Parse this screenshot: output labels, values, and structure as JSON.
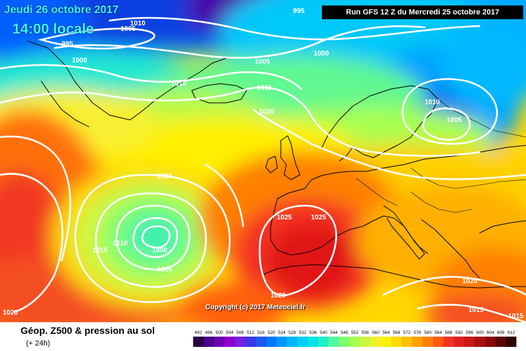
{
  "header": {
    "date": "Jeudi 26 octobre 2017",
    "time": "14:00 locale",
    "run": "Run GFS 12 Z du Mercredi 25 octobre 2017"
  },
  "map": {
    "copyright": "Copyright (c) 2017 Meteociel.fr",
    "isobar_labels": [
      {
        "id": "isobar-label-995-a",
        "text": "995"
      },
      {
        "id": "isobar-label-995-b",
        "text": "995"
      },
      {
        "id": "isobar-label-1010-a",
        "text": "1010"
      },
      {
        "id": "isobar-label-1005-a",
        "text": "1005"
      },
      {
        "id": "isobar-label-1000-a",
        "text": "1000"
      },
      {
        "id": "isobar-label-1005-b",
        "text": "1005"
      },
      {
        "id": "isobar-label-1000-b",
        "text": "1000"
      },
      {
        "id": "isobar-label-1010-b",
        "text": "1010"
      },
      {
        "id": "isobar-label-1015-a",
        "text": "1015"
      },
      {
        "id": "isobar-label-1020-a",
        "text": "1020"
      },
      {
        "id": "isobar-label-1010-c",
        "text": "1010"
      },
      {
        "id": "isobar-label-1005-c",
        "text": "1005"
      },
      {
        "id": "isobar-label-1020-b",
        "text": "1020"
      },
      {
        "id": "isobar-label-1025-a",
        "text": "1025"
      },
      {
        "id": "isobar-label-1025-b",
        "text": "1025"
      },
      {
        "id": "isobar-label-1015-b",
        "text": "1015"
      },
      {
        "id": "isobar-label-1010-d",
        "text": "1010"
      },
      {
        "id": "isobar-label-1000-c",
        "text": "1000"
      },
      {
        "id": "isobar-label-1005-d",
        "text": "1005"
      },
      {
        "id": "isobar-label-1020-c",
        "text": "1020"
      },
      {
        "id": "isobar-label-1020-d",
        "text": "1020"
      },
      {
        "id": "isobar-label-1020-e",
        "text": "1020"
      },
      {
        "id": "isobar-label-1015-c",
        "text": "1015"
      },
      {
        "id": "isobar-label-1015-d",
        "text": "1015"
      }
    ]
  },
  "footer": {
    "title": "Géop. Z500 & pression au sol",
    "subtitle": "(+ 24h)"
  },
  "legend": {
    "values": [
      "492",
      "496",
      "500",
      "504",
      "508",
      "512",
      "516",
      "520",
      "524",
      "528",
      "532",
      "536",
      "540",
      "544",
      "548",
      "552",
      "556",
      "560",
      "564",
      "568",
      "572",
      "576",
      "580",
      "584",
      "588",
      "592",
      "596",
      "600",
      "604",
      "608",
      "612"
    ],
    "colors": [
      "#2a0044",
      "#4a0088",
      "#6a00b0",
      "#9000d0",
      "#7a1ee0",
      "#3838e6",
      "#2058f0",
      "#0078ff",
      "#0098ff",
      "#00b8ff",
      "#00d0f8",
      "#00e4e8",
      "#20f0c8",
      "#50f8a0",
      "#80ff70",
      "#a8ff50",
      "#cff540",
      "#f0f030",
      "#fff000",
      "#ffd800",
      "#ffc000",
      "#ffa000",
      "#ff8000",
      "#ff5a10",
      "#f43020",
      "#e02020",
      "#c81818",
      "#a81010",
      "#880808",
      "#5a0505",
      "#300000"
    ]
  }
}
